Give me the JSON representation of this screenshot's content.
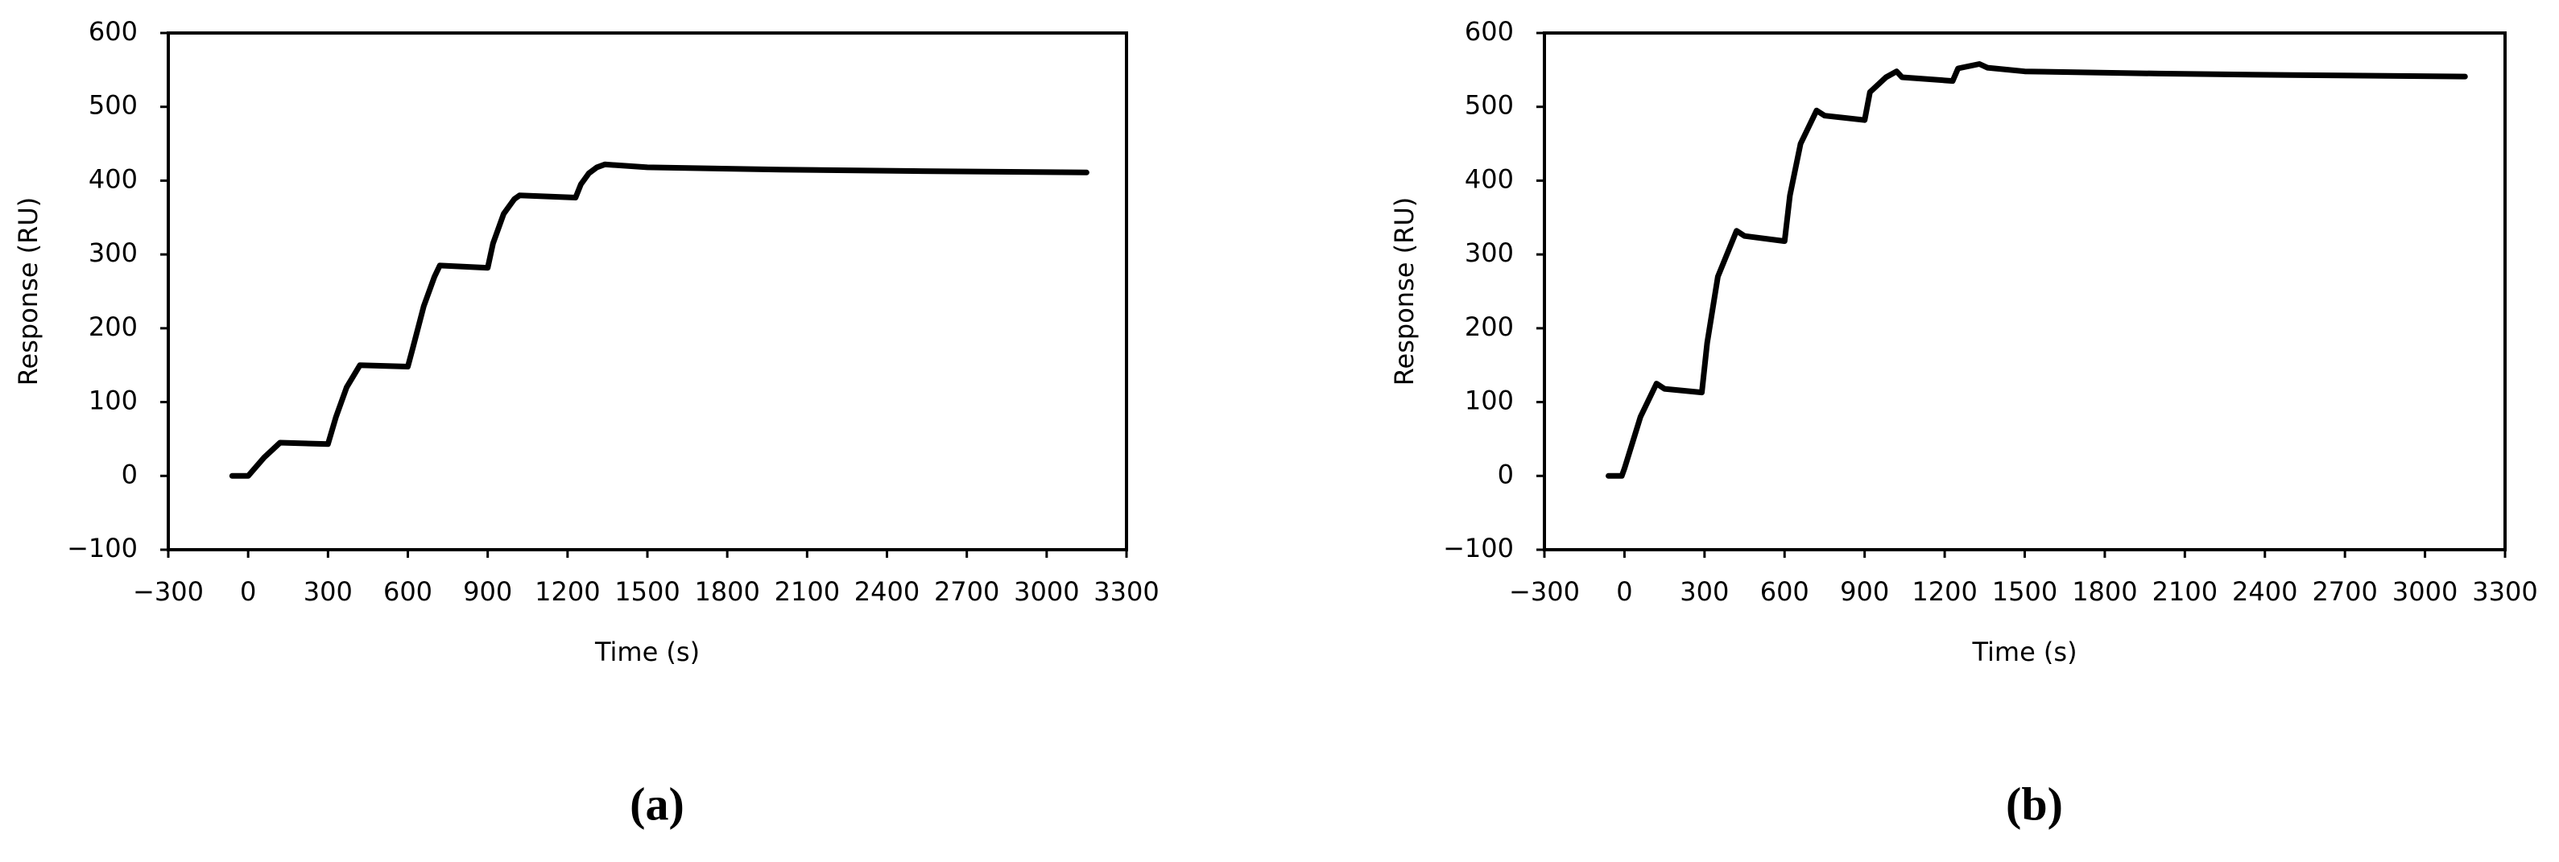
{
  "chart_data": [
    {
      "type": "line",
      "panel_label": "(a)",
      "xlabel": "Time (s)",
      "ylabel": "Response (RU)",
      "xlim": [
        -300,
        3300
      ],
      "xticks": [
        {
          "value": -300,
          "label": "−300"
        },
        0,
        300,
        600,
        900,
        1200,
        1500,
        1800,
        2100,
        2400,
        2700,
        3000,
        3300
      ],
      "ylim": [
        -100,
        600
      ],
      "yticks": [
        {
          "value": -100,
          "label": "−100"
        },
        0,
        100,
        200,
        300,
        400,
        500,
        600
      ],
      "x": [
        -60,
        0,
        60,
        120,
        300,
        330,
        370,
        420,
        600,
        620,
        660,
        700,
        720,
        900,
        920,
        960,
        1000,
        1020,
        1230,
        1250,
        1280,
        1310,
        1340,
        1500,
        2000,
        2500,
        3150
      ],
      "series": [
        {
          "color": "#000000",
          "values": [
            0,
            0,
            25,
            45,
            43,
            80,
            120,
            150,
            148,
            175,
            230,
            270,
            285,
            282,
            315,
            355,
            375,
            380,
            377,
            395,
            410,
            418,
            422,
            418,
            415,
            413,
            411
          ]
        }
      ]
    },
    {
      "type": "line",
      "panel_label": "(b)",
      "xlabel": "Time (s)",
      "ylabel": "Response (RU)",
      "xlim": [
        -300,
        3300
      ],
      "xticks": [
        {
          "value": -300,
          "label": "−300"
        },
        0,
        300,
        600,
        900,
        1200,
        1500,
        1800,
        2100,
        2400,
        2700,
        3000,
        3300
      ],
      "ylim": [
        -100,
        600
      ],
      "yticks": [
        {
          "value": -100,
          "label": "−100"
        },
        0,
        100,
        200,
        300,
        400,
        500,
        600
      ],
      "x": [
        -60,
        -10,
        0,
        60,
        120,
        150,
        290,
        310,
        350,
        420,
        450,
        600,
        620,
        660,
        720,
        750,
        900,
        920,
        980,
        1020,
        1040,
        1230,
        1250,
        1330,
        1360,
        1500,
        2000,
        2500,
        3150
      ],
      "series": [
        {
          "color": "#000000",
          "values": [
            0,
            0,
            10,
            80,
            125,
            118,
            113,
            180,
            270,
            332,
            325,
            318,
            380,
            450,
            495,
            488,
            482,
            520,
            540,
            548,
            540,
            535,
            552,
            558,
            553,
            548,
            545,
            543,
            541
          ]
        }
      ]
    }
  ]
}
